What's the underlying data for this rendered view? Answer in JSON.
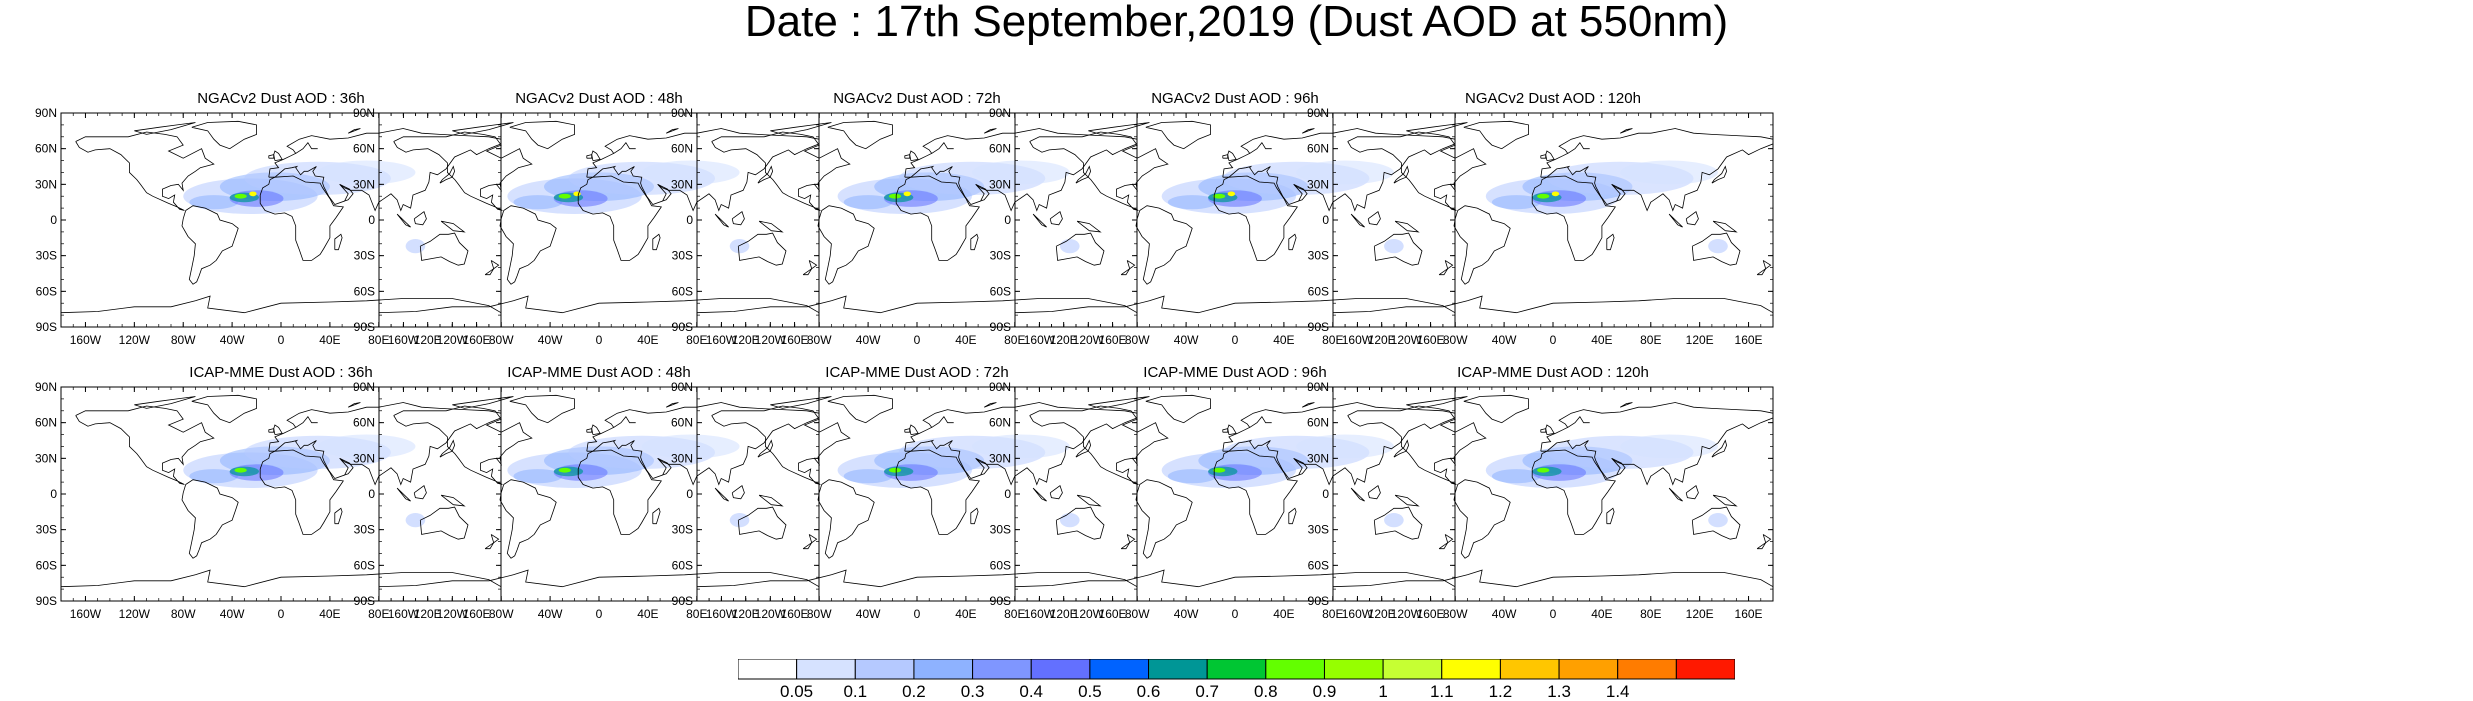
{
  "title": "Date : 17th September,2019 (Dust AOD at 550nm)",
  "axes": {
    "lat_labels": [
      "90N",
      "60N",
      "30N",
      "0",
      "30S",
      "60S",
      "90S"
    ],
    "lon_labels": [
      "160W",
      "120W",
      "80W",
      "40W",
      "0",
      "40E",
      "80E",
      "120E",
      "160E"
    ]
  },
  "panels": [
    {
      "title": "NGACv2 Dust AOD : 36h",
      "model": "NGACv2",
      "lead": "36h"
    },
    {
      "title": "NGACv2 Dust AOD : 48h",
      "model": "NGACv2",
      "lead": "48h"
    },
    {
      "title": "NGACv2 Dust AOD : 72h",
      "model": "NGACv2",
      "lead": "72h"
    },
    {
      "title": "NGACv2 Dust AOD : 96h",
      "model": "NGACv2",
      "lead": "96h"
    },
    {
      "title": "NGACv2 Dust AOD : 120h",
      "model": "NGACv2",
      "lead": "120h"
    },
    {
      "title": "ICAP-MME Dust AOD : 36h",
      "model": "ICAP-MME",
      "lead": "36h"
    },
    {
      "title": "ICAP-MME Dust AOD : 48h",
      "model": "ICAP-MME",
      "lead": "48h"
    },
    {
      "title": "ICAP-MME Dust AOD : 72h",
      "model": "ICAP-MME",
      "lead": "72h"
    },
    {
      "title": "ICAP-MME Dust AOD : 96h",
      "model": "ICAP-MME",
      "lead": "96h"
    },
    {
      "title": "ICAP-MME Dust AOD : 120h",
      "model": "ICAP-MME",
      "lead": "120h"
    }
  ],
  "colorbar": {
    "labels": [
      "0.05",
      "0.1",
      "0.2",
      "0.3",
      "0.4",
      "0.5",
      "0.6",
      "0.7",
      "0.8",
      "0.9",
      "1",
      "1.1",
      "1.2",
      "1.3",
      "1.4"
    ],
    "colors": [
      "#ffffff",
      "#d6e2ff",
      "#b5c9ff",
      "#8eb2ff",
      "#7f96ff",
      "#6370ff",
      "#0063ff",
      "#009696",
      "#00c633",
      "#63ff00",
      "#96ff00",
      "#c6ff33",
      "#ffff00",
      "#ffc600",
      "#ffa000",
      "#ff7c00",
      "#ff1900"
    ]
  }
}
